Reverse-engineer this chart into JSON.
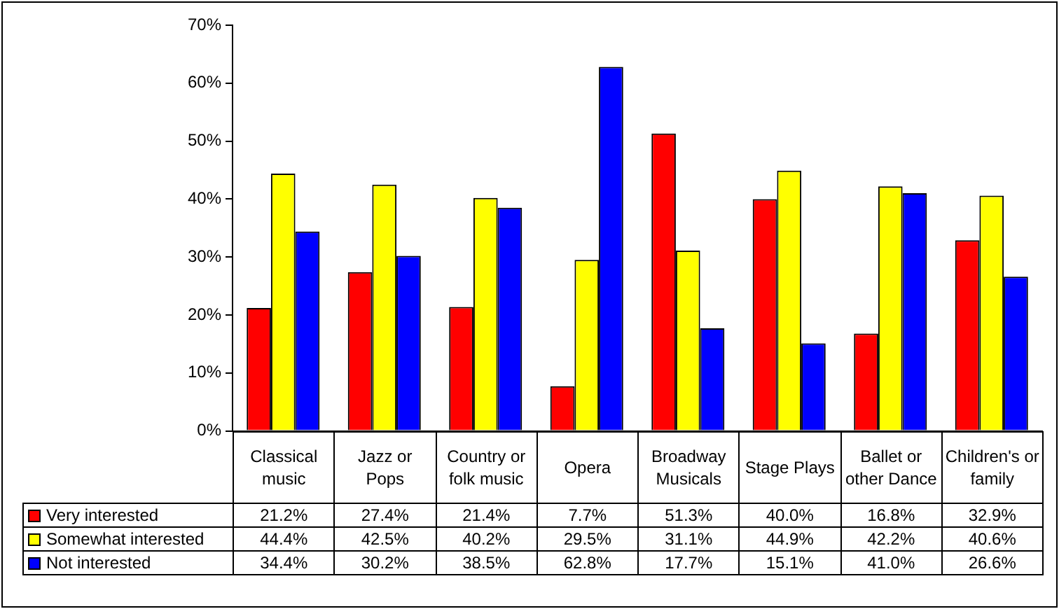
{
  "chart_data": {
    "type": "bar",
    "categories": [
      "Classical music",
      "Jazz or Pops",
      "Country or folk music",
      "Opera",
      "Broadway Musicals",
      "Stage Plays",
      "Ballet or other Dance",
      "Children's or family"
    ],
    "series": [
      {
        "name": "Very interested",
        "color": "#ff0000",
        "values": [
          21.2,
          27.4,
          21.4,
          7.7,
          51.3,
          40.0,
          16.8,
          32.9
        ],
        "value_labels": [
          "21.2%",
          "27.4%",
          "21.4%",
          "7.7%",
          "51.3%",
          "40.0%",
          "16.8%",
          "32.9%"
        ]
      },
      {
        "name": "Somewhat interested",
        "color": "#ffff00",
        "values": [
          44.4,
          42.5,
          40.2,
          29.5,
          31.1,
          44.9,
          42.2,
          40.6
        ],
        "value_labels": [
          "44.4%",
          "42.5%",
          "40.2%",
          "29.5%",
          "31.1%",
          "44.9%",
          "42.2%",
          "40.6%"
        ]
      },
      {
        "name": "Not interested",
        "color": "#0000ff",
        "values": [
          34.4,
          30.2,
          38.5,
          62.8,
          17.7,
          15.1,
          41.0,
          26.6
        ],
        "value_labels": [
          "34.4%",
          "30.2%",
          "38.5%",
          "62.8%",
          "17.7%",
          "15.1%",
          "41.0%",
          "26.6%"
        ]
      }
    ],
    "ylim": [
      0,
      70
    ],
    "yticks": [
      {
        "value": 0,
        "label": "0%"
      },
      {
        "value": 10,
        "label": "10%"
      },
      {
        "value": 20,
        "label": "20%"
      },
      {
        "value": 30,
        "label": "30%"
      },
      {
        "value": 40,
        "label": "40%"
      },
      {
        "value": 50,
        "label": "50%"
      },
      {
        "value": 60,
        "label": "60%"
      },
      {
        "value": 70,
        "label": "70%"
      }
    ],
    "grid": false,
    "legend": "bottom"
  }
}
